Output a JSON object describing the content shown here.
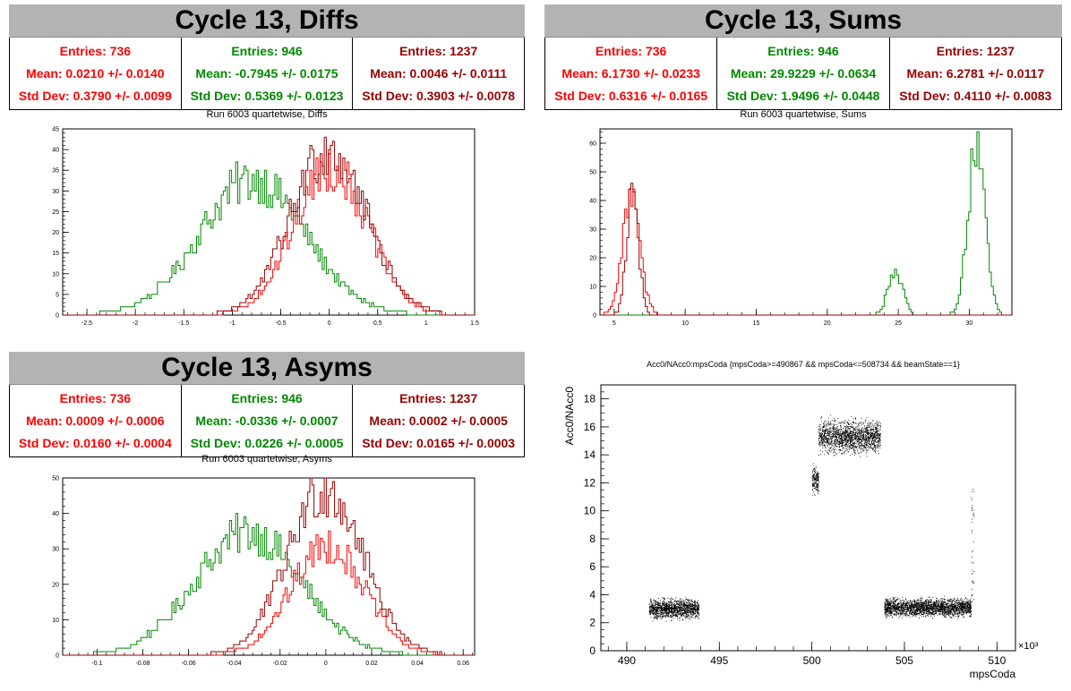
{
  "panels": {
    "diffs": {
      "banner": "Cycle 13, Diffs",
      "subtitle": "Run 6003 quartetwise, Diffs",
      "stats": [
        {
          "entries": "Entries: 736",
          "mean": "Mean: 0.0210 +/- 0.0140",
          "std": "Std Dev: 0.3790 +/- 0.0099",
          "color": "#ff0000"
        },
        {
          "entries": "Entries: 946",
          "mean": "Mean: -0.7945 +/- 0.0175",
          "std": "Std Dev: 0.5369 +/- 0.0123",
          "color": "#008800"
        },
        {
          "entries": "Entries: 1237",
          "mean": "Mean: 0.0046 +/- 0.0111",
          "std": "Std Dev: 0.3903 +/- 0.0078",
          "color": "#990000"
        }
      ]
    },
    "sums": {
      "banner": "Cycle 13, Sums",
      "subtitle": "Run 6003 quartetwise, Sums",
      "stats": [
        {
          "entries": "Entries: 736",
          "mean": "Mean: 6.1730 +/- 0.0233",
          "std": "Std Dev: 0.6316 +/- 0.0165",
          "color": "#ff0000"
        },
        {
          "entries": "Entries: 946",
          "mean": "Mean: 29.9229 +/- 0.0634",
          "std": "Std Dev: 1.9496 +/- 0.0448",
          "color": "#008800"
        },
        {
          "entries": "Entries: 1237",
          "mean": "Mean: 6.2781 +/- 0.0117",
          "std": "Std Dev: 0.4110 +/- 0.0083",
          "color": "#990000"
        }
      ]
    },
    "asyms": {
      "banner": "Cycle 13, Asyms",
      "subtitle": "Run 6003 quartetwise, Asyms",
      "stats": [
        {
          "entries": "Entries: 736",
          "mean": "Mean: 0.0009 +/- 0.0006",
          "std": "Std Dev: 0.0160 +/- 0.0004",
          "color": "#ff0000"
        },
        {
          "entries": "Entries: 946",
          "mean": "Mean: -0.0336 +/- 0.0007",
          "std": "Std Dev: 0.0226 +/- 0.0005",
          "color": "#008800"
        },
        {
          "entries": "Entries: 1237",
          "mean": "Mean: 0.0002 +/- 0.0005",
          "std": "Std Dev: 0.0165 +/- 0.0003",
          "color": "#990000"
        }
      ]
    },
    "scatter": {
      "subtitle": "Acc0/NAcc0:mpsCoda {mpsCoda>=490867 && mpsCoda<=508734 && beamState==1}"
    }
  },
  "chart_data": [
    {
      "id": "diffs",
      "type": "histogram",
      "title": "Run 6003 quartetwise, Diffs",
      "xlim": [
        -2.75,
        1.5
      ],
      "ylim": [
        0,
        45
      ],
      "xticks": [
        -2.5,
        -2,
        -1.5,
        -1,
        -0.5,
        0,
        0.5,
        1,
        1.5
      ],
      "yticks": [
        0,
        5,
        10,
        15,
        20,
        25,
        30,
        35,
        40,
        45
      ],
      "series": [
        {
          "color": "#008800",
          "mean": -0.79,
          "sigma": 0.54,
          "n": 946,
          "peak": 35
        },
        {
          "color": "#ff0000",
          "mean": 0.02,
          "sigma": 0.38,
          "n": 736,
          "peak": 38
        },
        {
          "color": "#990000",
          "mean": 0.0,
          "sigma": 0.39,
          "n": 1237,
          "peak": 43
        }
      ]
    },
    {
      "id": "sums",
      "type": "histogram",
      "title": "Run 6003 quartetwise, Sums",
      "xlim": [
        4,
        33
      ],
      "ylim": [
        0,
        65
      ],
      "xticks": [
        5,
        10,
        15,
        20,
        25,
        30
      ],
      "yticks": [
        0,
        10,
        20,
        30,
        40,
        50,
        60
      ],
      "series": [
        {
          "color": "#008800",
          "mean": 30.5,
          "sigma": 0.6,
          "n": 800,
          "peak": 62
        },
        {
          "color": "#008800",
          "mean": 24.8,
          "sigma": 0.5,
          "n": 146,
          "peak": 17
        },
        {
          "color": "#ff0000",
          "mean": 6.2,
          "sigma": 0.63,
          "n": 736,
          "peak": 42
        },
        {
          "color": "#990000",
          "mean": 6.3,
          "sigma": 0.41,
          "n": 1237,
          "peak": 45
        }
      ]
    },
    {
      "id": "asyms",
      "type": "histogram",
      "title": "Run 6003 quartetwise, Asyms",
      "xlim": [
        -0.115,
        0.065
      ],
      "ylim": [
        0,
        50
      ],
      "xticks": [
        -0.1,
        -0.08,
        -0.06,
        -0.04,
        -0.02,
        0,
        0.02,
        0.04,
        0.06
      ],
      "yticks": [
        0,
        10,
        20,
        30,
        40,
        50
      ],
      "series": [
        {
          "color": "#008800",
          "mean": -0.034,
          "sigma": 0.023,
          "n": 946,
          "peak": 37
        },
        {
          "color": "#ff0000",
          "mean": 0.001,
          "sigma": 0.016,
          "n": 736,
          "peak": 33
        },
        {
          "color": "#990000",
          "mean": 0.0,
          "sigma": 0.0165,
          "n": 1237,
          "peak": 50
        }
      ]
    },
    {
      "id": "scatter",
      "type": "scatter",
      "title": "Acc0/NAcc0:mpsCoda {mpsCoda>=490867 && mpsCoda<=508734 && beamState==1}",
      "xlabel": "mpsCoda",
      "ylabel": "Acc0/NAcc0",
      "x_multiplier": "×10³",
      "xlim": [
        488.6,
        511
      ],
      "ylim": [
        0,
        19
      ],
      "xticks": [
        490,
        495,
        500,
        505,
        510
      ],
      "yticks": [
        0,
        2,
        4,
        6,
        8,
        10,
        12,
        14,
        16,
        18
      ],
      "clusters": [
        {
          "x": [
            491.2,
            493.9
          ],
          "y_center": 3.0,
          "y_spread": 0.6
        },
        {
          "x": [
            500.0,
            500.35
          ],
          "y_center": 12.2,
          "y_spread": 0.9
        },
        {
          "x": [
            500.35,
            503.7
          ],
          "y_center": 15.3,
          "y_spread": 1.0
        },
        {
          "x": [
            503.9,
            508.6
          ],
          "y_center": 3.1,
          "y_spread": 0.55
        }
      ],
      "color": "#000000"
    }
  ]
}
